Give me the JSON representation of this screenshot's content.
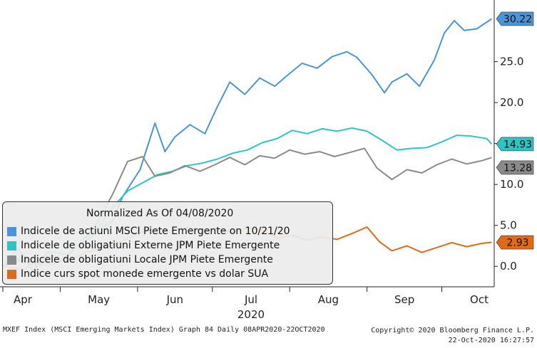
{
  "chart_data": {
    "type": "line",
    "x_ticks": [
      "Apr",
      "May",
      "Jun",
      "Jul",
      "Aug",
      "Sep",
      "Oct"
    ],
    "year_label": "2020",
    "y_ticks": [
      "25.0",
      "20.0",
      "15.0",
      "10.0",
      "5.0",
      "0.0"
    ],
    "y_tick_values": [
      25,
      20,
      15,
      10,
      5,
      0
    ],
    "ylim": [
      -2.5,
      32
    ],
    "xlim": [
      "2020-04-08",
      "2020-10-22"
    ],
    "grid": false,
    "y_axis_position": "right",
    "legend": {
      "title": "Normalized As Of 04/08/2020",
      "placement": "bottom-left"
    },
    "series": [
      {
        "name": "Indicele de actiuni MSCI Piete Emergente on 10/21/20",
        "color": "#4a94d8",
        "last_value_label": "30.22",
        "points": [
          [
            "2020-04-08",
            0
          ],
          [
            "2020-04-14",
            2.2
          ],
          [
            "2020-04-20",
            -0.6
          ],
          [
            "2020-04-26",
            1.8
          ],
          [
            "2020-05-02",
            0.6
          ],
          [
            "2020-05-08",
            2.6
          ],
          [
            "2020-05-12",
            3.2
          ],
          [
            "2020-05-18",
            4.8
          ],
          [
            "2020-05-22",
            5.5
          ],
          [
            "2020-05-26",
            8.5
          ],
          [
            "2020-06-02",
            11.8
          ],
          [
            "2020-06-08",
            17.5
          ],
          [
            "2020-06-12",
            14.0
          ],
          [
            "2020-06-16",
            15.8
          ],
          [
            "2020-06-22",
            17.3
          ],
          [
            "2020-06-28",
            16.2
          ],
          [
            "2020-07-03",
            19.5
          ],
          [
            "2020-07-08",
            22.5
          ],
          [
            "2020-07-14",
            21.0
          ],
          [
            "2020-07-20",
            23.0
          ],
          [
            "2020-07-26",
            22.0
          ],
          [
            "2020-07-31",
            23.3
          ],
          [
            "2020-08-06",
            24.8
          ],
          [
            "2020-08-12",
            24.2
          ],
          [
            "2020-08-18",
            25.6
          ],
          [
            "2020-08-24",
            26.2
          ],
          [
            "2020-08-28",
            25.5
          ],
          [
            "2020-09-03",
            23.4
          ],
          [
            "2020-09-08",
            21.2
          ],
          [
            "2020-09-11",
            22.5
          ],
          [
            "2020-09-17",
            23.5
          ],
          [
            "2020-09-22",
            22.0
          ],
          [
            "2020-09-28",
            25.2
          ],
          [
            "2020-10-02",
            28.5
          ],
          [
            "2020-10-06",
            30.0
          ],
          [
            "2020-10-10",
            28.8
          ],
          [
            "2020-10-15",
            29.0
          ],
          [
            "2020-10-21",
            30.22
          ]
        ]
      },
      {
        "name": "Indicele de obligatiuni Externe JPM Piete Emergente",
        "color": "#2ec4c4",
        "last_value_label": "14.93",
        "points": [
          [
            "2020-04-08",
            0
          ],
          [
            "2020-04-16",
            1.2
          ],
          [
            "2020-04-22",
            0.4
          ],
          [
            "2020-04-28",
            1.8
          ],
          [
            "2020-05-04",
            1.4
          ],
          [
            "2020-05-10",
            3.2
          ],
          [
            "2020-05-16",
            4.6
          ],
          [
            "2020-05-22",
            7.2
          ],
          [
            "2020-05-28",
            9.2
          ],
          [
            "2020-06-03",
            10.2
          ],
          [
            "2020-06-09",
            11.2
          ],
          [
            "2020-06-15",
            11.6
          ],
          [
            "2020-06-21",
            12.3
          ],
          [
            "2020-06-27",
            12.6
          ],
          [
            "2020-07-03",
            13.1
          ],
          [
            "2020-07-09",
            13.8
          ],
          [
            "2020-07-15",
            14.2
          ],
          [
            "2020-07-21",
            15.1
          ],
          [
            "2020-07-27",
            15.6
          ],
          [
            "2020-08-02",
            16.6
          ],
          [
            "2020-08-08",
            16.2
          ],
          [
            "2020-08-14",
            16.8
          ],
          [
            "2020-08-20",
            16.5
          ],
          [
            "2020-08-26",
            16.9
          ],
          [
            "2020-09-01",
            16.5
          ],
          [
            "2020-09-07",
            15.4
          ],
          [
            "2020-09-13",
            14.2
          ],
          [
            "2020-09-19",
            14.4
          ],
          [
            "2020-09-25",
            14.5
          ],
          [
            "2020-10-01",
            15.2
          ],
          [
            "2020-10-07",
            16.0
          ],
          [
            "2020-10-13",
            15.9
          ],
          [
            "2020-10-19",
            15.6
          ],
          [
            "2020-10-21",
            14.93
          ]
        ]
      },
      {
        "name": "Indicele de obligatiuni Locale JPM Piete Emergente",
        "color": "#8a8a8a",
        "last_value_label": "13.28",
        "points": [
          [
            "2020-04-08",
            0
          ],
          [
            "2020-04-16",
            -0.4
          ],
          [
            "2020-04-22",
            0.6
          ],
          [
            "2020-04-28",
            0.2
          ],
          [
            "2020-05-04",
            1.2
          ],
          [
            "2020-05-10",
            3.2
          ],
          [
            "2020-05-16",
            5.4
          ],
          [
            "2020-05-22",
            8.8
          ],
          [
            "2020-05-28",
            12.8
          ],
          [
            "2020-06-03",
            13.4
          ],
          [
            "2020-06-08",
            11.0
          ],
          [
            "2020-06-14",
            11.4
          ],
          [
            "2020-06-20",
            12.3
          ],
          [
            "2020-06-26",
            11.6
          ],
          [
            "2020-07-02",
            12.4
          ],
          [
            "2020-07-08",
            13.3
          ],
          [
            "2020-07-14",
            12.4
          ],
          [
            "2020-07-20",
            13.5
          ],
          [
            "2020-07-26",
            13.2
          ],
          [
            "2020-08-01",
            14.2
          ],
          [
            "2020-08-07",
            13.7
          ],
          [
            "2020-08-13",
            14.0
          ],
          [
            "2020-08-19",
            13.4
          ],
          [
            "2020-08-25",
            13.9
          ],
          [
            "2020-08-31",
            14.4
          ],
          [
            "2020-09-05",
            12.0
          ],
          [
            "2020-09-11",
            10.6
          ],
          [
            "2020-09-17",
            11.8
          ],
          [
            "2020-09-23",
            11.4
          ],
          [
            "2020-09-29",
            12.4
          ],
          [
            "2020-10-05",
            13.1
          ],
          [
            "2020-10-11",
            12.5
          ],
          [
            "2020-10-17",
            12.9
          ],
          [
            "2020-10-21",
            13.28
          ]
        ]
      },
      {
        "name": "Indice curs spot monede emergente vs dolar SUA",
        "color": "#e06a1a",
        "last_value_label": "2.93",
        "points": [
          [
            "2020-04-08",
            0
          ],
          [
            "2020-04-16",
            0.8
          ],
          [
            "2020-04-22",
            0.1
          ],
          [
            "2020-04-28",
            1.1
          ],
          [
            "2020-05-04",
            0.7
          ],
          [
            "2020-05-10",
            1.5
          ],
          [
            "2020-05-16",
            2.2
          ],
          [
            "2020-05-22",
            2.6
          ],
          [
            "2020-05-28",
            3.4
          ],
          [
            "2020-06-03",
            4.2
          ],
          [
            "2020-06-09",
            4.6
          ],
          [
            "2020-06-15",
            4.3
          ],
          [
            "2020-06-21",
            4.8
          ],
          [
            "2020-06-27",
            4.3
          ],
          [
            "2020-07-03",
            4.6
          ],
          [
            "2020-07-09",
            4.1
          ],
          [
            "2020-07-15",
            4.7
          ],
          [
            "2020-07-21",
            4.4
          ],
          [
            "2020-07-27",
            3.4
          ],
          [
            "2020-08-02",
            3.8
          ],
          [
            "2020-08-08",
            3.2
          ],
          [
            "2020-08-14",
            3.6
          ],
          [
            "2020-08-20",
            3.3
          ],
          [
            "2020-08-26",
            4.0
          ],
          [
            "2020-09-01",
            4.8
          ],
          [
            "2020-09-06",
            3.0
          ],
          [
            "2020-09-11",
            1.9
          ],
          [
            "2020-09-17",
            2.5
          ],
          [
            "2020-09-23",
            1.7
          ],
          [
            "2020-09-29",
            2.3
          ],
          [
            "2020-10-05",
            2.9
          ],
          [
            "2020-10-11",
            2.4
          ],
          [
            "2020-10-17",
            2.8
          ],
          [
            "2020-10-21",
            2.93
          ]
        ]
      }
    ]
  },
  "footer": {
    "left": "MXEF Index (MSCI Emerging Markets Index) Graph 84  Daily 08APR2020-22OCT2020",
    "copyright": "Copyright© 2020 Bloomberg Finance L.P.",
    "timestamp": "22-Oct-2020 16:27:57"
  }
}
